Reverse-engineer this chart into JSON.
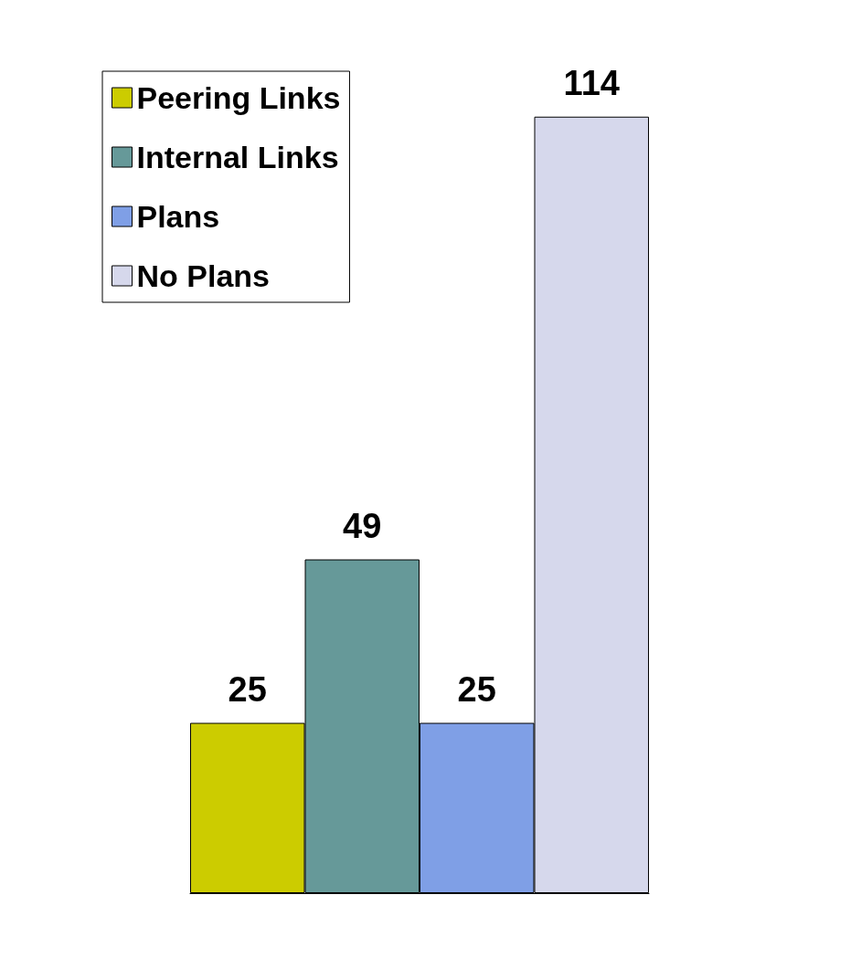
{
  "chart_data": {
    "type": "bar",
    "categories": [
      null
    ],
    "series": [
      {
        "name": "Peering Links",
        "color": "#cccc00",
        "values": [
          25
        ]
      },
      {
        "name": "Internal Links",
        "color": "#669999",
        "values": [
          49
        ]
      },
      {
        "name": "Plans",
        "color": "#7f9fe6",
        "values": [
          25
        ]
      },
      {
        "name": "No Plans",
        "color": "#d6d8ec",
        "values": [
          114
        ]
      }
    ],
    "data_labels": true,
    "legend": "top left",
    "grid": false
  }
}
